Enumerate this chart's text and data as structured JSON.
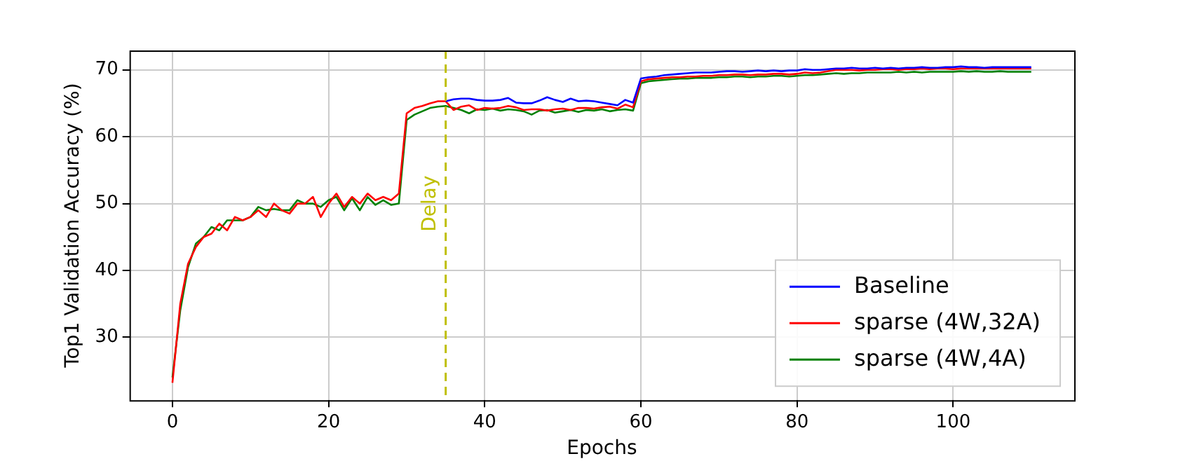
{
  "chart_data": {
    "type": "line",
    "xlabel": "Epochs",
    "ylabel": "Top1 Validation Accuracy (%)",
    "x": [
      0,
      1,
      2,
      3,
      4,
      5,
      6,
      7,
      8,
      9,
      10,
      11,
      12,
      13,
      14,
      15,
      16,
      17,
      18,
      19,
      20,
      21,
      22,
      23,
      24,
      25,
      26,
      27,
      28,
      29,
      30,
      31,
      32,
      33,
      34,
      35,
      36,
      37,
      38,
      39,
      40,
      41,
      42,
      43,
      44,
      45,
      46,
      47,
      48,
      49,
      50,
      51,
      52,
      53,
      54,
      55,
      56,
      57,
      58,
      59,
      60,
      61,
      62,
      63,
      64,
      65,
      66,
      67,
      68,
      69,
      70,
      71,
      72,
      73,
      74,
      75,
      76,
      77,
      78,
      79,
      80,
      81,
      82,
      83,
      84,
      85,
      86,
      87,
      88,
      89,
      90,
      91,
      92,
      93,
      94,
      95,
      96,
      97,
      98,
      99,
      100,
      101,
      102,
      103,
      104,
      105,
      106,
      107,
      108,
      109,
      110
    ],
    "series": [
      {
        "name": "Baseline",
        "color": "#0000ff",
        "values": [
          null,
          null,
          null,
          null,
          null,
          null,
          null,
          null,
          null,
          null,
          null,
          null,
          null,
          null,
          null,
          null,
          null,
          null,
          null,
          null,
          null,
          null,
          null,
          null,
          null,
          null,
          null,
          null,
          null,
          null,
          null,
          null,
          null,
          null,
          null,
          65.3,
          65.6,
          65.7,
          65.7,
          65.5,
          65.4,
          65.4,
          65.5,
          65.8,
          65.1,
          65.0,
          65.0,
          65.4,
          65.9,
          65.5,
          65.2,
          65.7,
          65.3,
          65.4,
          65.3,
          65.1,
          64.9,
          64.7,
          65.5,
          65.1,
          68.7,
          68.9,
          69.0,
          69.2,
          69.3,
          69.4,
          69.5,
          69.6,
          69.6,
          69.6,
          69.7,
          69.8,
          69.8,
          69.7,
          69.8,
          69.9,
          69.8,
          69.9,
          69.8,
          69.9,
          69.9,
          70.1,
          70.0,
          70.0,
          70.1,
          70.2,
          70.2,
          70.3,
          70.2,
          70.2,
          70.3,
          70.2,
          70.3,
          70.2,
          70.3,
          70.3,
          70.4,
          70.3,
          70.3,
          70.4,
          70.4,
          70.5,
          70.4,
          70.4,
          70.3,
          70.4,
          70.4,
          70.4,
          70.4,
          70.4,
          70.4
        ]
      },
      {
        "name": "sparse (4W,32A)",
        "color": "#ff0000",
        "values": [
          23.2,
          35,
          41,
          43.5,
          45,
          45.5,
          47,
          46,
          48,
          47.5,
          48,
          49,
          48,
          50,
          49,
          48.5,
          50,
          50,
          51,
          48,
          50,
          51.5,
          49.5,
          51,
          50,
          51.5,
          50.5,
          51,
          50.5,
          51.5,
          63.5,
          64.3,
          64.6,
          65,
          65.3,
          65.3,
          64.0,
          64.5,
          64.7,
          64.0,
          64.3,
          64.2,
          64.3,
          64.6,
          64.4,
          64.0,
          64.1,
          64.1,
          63.9,
          64.1,
          64.2,
          64.0,
          64.3,
          64.3,
          64.2,
          64.4,
          64.5,
          64.2,
          64.8,
          64.4,
          68.3,
          68.6,
          68.7,
          68.8,
          68.9,
          68.9,
          69.0,
          69.0,
          69.1,
          69.1,
          69.2,
          69.2,
          69.3,
          69.3,
          69.2,
          69.3,
          69.3,
          69.4,
          69.4,
          69.3,
          69.4,
          69.6,
          69.5,
          69.6,
          69.8,
          70.0,
          70.0,
          70.0,
          69.9,
          70.0,
          70.0,
          70.1,
          70.1,
          70.0,
          70.1,
          70.1,
          70.2,
          70.1,
          70.2,
          70.2,
          70.1,
          70.2,
          70.2,
          70.2,
          70.2,
          70.2,
          70.2,
          70.2,
          70.2,
          70.2,
          70.2
        ]
      },
      {
        "name": "sparse (4W,4A)",
        "color": "#008000",
        "values": [
          24,
          34,
          40.5,
          44,
          45,
          46.5,
          46,
          47.5,
          47.5,
          47.5,
          48,
          49.5,
          49,
          49.2,
          49,
          49,
          50.5,
          50,
          50,
          49.5,
          50.5,
          51,
          49,
          50.8,
          49,
          51,
          49.8,
          50.5,
          49.8,
          50,
          62.5,
          63.3,
          63.8,
          64.3,
          64.5,
          64.6,
          64.3,
          64.0,
          63.5,
          64.1,
          64.0,
          64.2,
          63.9,
          64.1,
          64.0,
          63.8,
          63.3,
          63.9,
          64.0,
          63.6,
          63.8,
          64.0,
          63.7,
          64.0,
          63.9,
          64.1,
          63.8,
          64.0,
          64.1,
          63.9,
          68.0,
          68.3,
          68.4,
          68.5,
          68.6,
          68.7,
          68.7,
          68.8,
          68.8,
          68.8,
          68.9,
          68.9,
          69.0,
          69.0,
          68.9,
          69.0,
          69.0,
          69.1,
          69.1,
          69.0,
          69.1,
          69.2,
          69.2,
          69.3,
          69.4,
          69.5,
          69.4,
          69.5,
          69.5,
          69.6,
          69.6,
          69.6,
          69.6,
          69.7,
          69.6,
          69.7,
          69.6,
          69.7,
          69.7,
          69.7,
          69.7,
          69.8,
          69.7,
          69.8,
          69.7,
          69.7,
          69.8,
          69.7,
          69.7,
          69.7,
          69.7
        ]
      }
    ],
    "xlim": [
      -5.5,
      115.5
    ],
    "xticks": [
      0,
      20,
      40,
      60,
      80,
      100
    ],
    "ylim": [
      20.6,
      72.9
    ],
    "yticks": [
      30,
      40,
      50,
      60,
      70
    ],
    "ref_lines": [
      {
        "axis": "x",
        "value": 35,
        "label": "Delay",
        "color": "#bfbf00",
        "line_style": "dashed"
      }
    ],
    "grid": true,
    "legend": "bottom right",
    "marker": "none",
    "line_style": "solid"
  }
}
